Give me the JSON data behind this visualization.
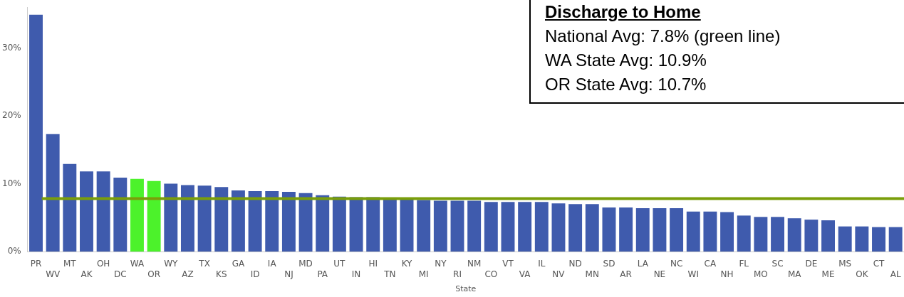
{
  "chart_data": {
    "type": "bar",
    "xlabel": "State",
    "categories": [
      "PR",
      "WV",
      "MT",
      "AK",
      "OH",
      "DC",
      "WA",
      "OR",
      "WY",
      "AZ",
      "TX",
      "KS",
      "GA",
      "ID",
      "IA",
      "NJ",
      "MD",
      "PA",
      "UT",
      "IN",
      "HI",
      "TN",
      "KY",
      "MI",
      "NY",
      "RI",
      "NM",
      "CO",
      "VT",
      "VA",
      "IL",
      "NV",
      "ND",
      "MN",
      "SD",
      "AR",
      "LA",
      "NE",
      "NC",
      "WI",
      "CA",
      "NH",
      "FL",
      "MO",
      "SC",
      "MA",
      "DE",
      "ME",
      "MS",
      "OK",
      "CT",
      "AL"
    ],
    "values": [
      34.9,
      17.3,
      12.9,
      11.8,
      11.8,
      10.9,
      10.7,
      10.4,
      10.0,
      9.8,
      9.7,
      9.5,
      9.0,
      8.9,
      8.9,
      8.8,
      8.6,
      8.3,
      8.1,
      8.0,
      8.0,
      7.9,
      7.7,
      7.6,
      7.5,
      7.5,
      7.5,
      7.3,
      7.3,
      7.3,
      7.3,
      7.1,
      7.0,
      7.0,
      6.5,
      6.5,
      6.4,
      6.4,
      6.4,
      5.9,
      5.9,
      5.8,
      5.3,
      5.1,
      5.1,
      4.9,
      4.7,
      4.6,
      3.7,
      3.7,
      3.6,
      3.6
    ],
    "colors": [
      "#3f5bad",
      "#3f5bad",
      "#3f5bad",
      "#3f5bad",
      "#3f5bad",
      "#3f5bad",
      "#4cf22b",
      "#4cf22b",
      "#3f5bad",
      "#3f5bad",
      "#3f5bad",
      "#3f5bad",
      "#3f5bad",
      "#3f5bad",
      "#3f5bad",
      "#3f5bad",
      "#3f5bad",
      "#3f5bad",
      "#3f5bad",
      "#3f5bad",
      "#3f5bad",
      "#3f5bad",
      "#3f5bad",
      "#3f5bad",
      "#3f5bad",
      "#3f5bad",
      "#3f5bad",
      "#3f5bad",
      "#3f5bad",
      "#3f5bad",
      "#3f5bad",
      "#3f5bad",
      "#3f5bad",
      "#3f5bad",
      "#3f5bad",
      "#3f5bad",
      "#3f5bad",
      "#3f5bad",
      "#3f5bad",
      "#3f5bad",
      "#3f5bad",
      "#3f5bad",
      "#3f5bad",
      "#3f5bad",
      "#3f5bad",
      "#3f5bad",
      "#3f5bad",
      "#3f5bad",
      "#3f5bad",
      "#3f5bad",
      "#3f5bad",
      "#3f5bad"
    ],
    "ylim": [
      0,
      36
    ],
    "yticks": [
      {
        "value": 0,
        "label": "0%"
      },
      {
        "value": 10,
        "label": "10%"
      },
      {
        "value": 20,
        "label": "20%"
      },
      {
        "value": 30,
        "label": "30%"
      }
    ],
    "grid": false,
    "legend": false,
    "ref_lines": [
      {
        "axis": "y",
        "value": 7.8,
        "color": "#7a9e0a"
      }
    ],
    "annotations": [
      "Discharge to Home",
      "National Avg: 7.8% (green line)",
      "WA State Avg: 10.9%",
      "OR State Avg: 10.7%"
    ]
  }
}
